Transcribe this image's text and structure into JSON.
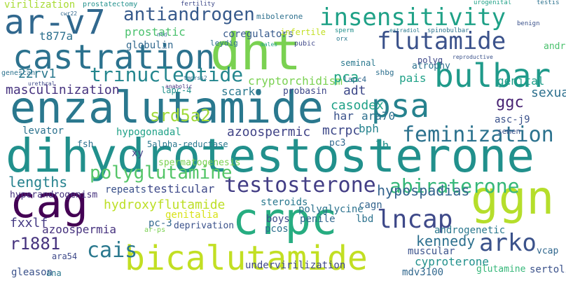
{
  "words": [
    {
      "text": "dihydrotestosterone",
      "color": "#21908c"
    },
    {
      "text": "enzalutamide",
      "color": "#2a788e"
    },
    {
      "text": "bicalutamide",
      "color": "#c2df23"
    },
    {
      "text": "dht",
      "color": "#7ad151"
    },
    {
      "text": "castration",
      "color": "#2c728e"
    },
    {
      "text": "crpc",
      "color": "#27ad81"
    },
    {
      "text": "cag",
      "color": "#440154"
    },
    {
      "text": "ggn",
      "color": "#b5de2b"
    },
    {
      "text": "ar-v7",
      "color": "#31688e"
    },
    {
      "text": "insensitivity",
      "color": "#1fa187"
    },
    {
      "text": "flutamide",
      "color": "#3b528b"
    },
    {
      "text": "bulbar",
      "color": "#1f9a8a"
    },
    {
      "text": "psa",
      "color": "#26828e"
    },
    {
      "text": "testosterone",
      "color": "#433e85"
    },
    {
      "text": "antiandrogen",
      "color": "#375a8c"
    },
    {
      "text": "arko",
      "color": "#3b528b"
    },
    {
      "text": "lncap",
      "color": "#3e4989"
    },
    {
      "text": "abiraterone",
      "color": "#35b779"
    },
    {
      "text": "feminization",
      "color": "#2c728e"
    },
    {
      "text": "trinucleotide",
      "color": "#24868e"
    },
    {
      "text": "polyglutamine",
      "color": "#54c568"
    },
    {
      "text": "hydroxyflutamide",
      "color": "#bddf26"
    },
    {
      "text": "cais",
      "color": "#2a788e"
    },
    {
      "text": "r1881",
      "color": "#46337e"
    },
    {
      "text": "hypospadias",
      "color": "#33638d"
    },
    {
      "text": "kennedy",
      "color": "#2d708e"
    },
    {
      "text": "lengths",
      "color": "#26828e"
    },
    {
      "text": "srd5a2",
      "color": "#a0da39"
    },
    {
      "text": "masculinization",
      "color": "#46327e"
    },
    {
      "text": "22rv1",
      "color": "#2a788e"
    },
    {
      "text": "t877a",
      "color": "#2d708e"
    },
    {
      "text": "virilization",
      "color": "#a8db34"
    },
    {
      "text": "prostatic",
      "color": "#4ac16d"
    },
    {
      "text": "globulin",
      "color": "#31688e"
    },
    {
      "text": "coregulators",
      "color": "#375a8c"
    },
    {
      "text": "cryptorchidism",
      "color": "#7ad151"
    },
    {
      "text": "pca",
      "color": "#22a884"
    },
    {
      "text": "adt",
      "color": "#3e4989"
    },
    {
      "text": "scarko",
      "color": "#2a788e"
    },
    {
      "text": "lapc-4",
      "color": "#21908c"
    },
    {
      "text": "probasin",
      "color": "#3f4889"
    },
    {
      "text": "pais",
      "color": "#1fa187"
    },
    {
      "text": "atrophy",
      "color": "#2c728e"
    },
    {
      "text": "sexual",
      "color": "#2d708e"
    },
    {
      "text": "genital",
      "color": "#1f9e89"
    },
    {
      "text": "ggc",
      "color": "#482374"
    },
    {
      "text": "casodex",
      "color": "#1fa187"
    },
    {
      "text": "har",
      "color": "#3b528b"
    },
    {
      "text": "ara70",
      "color": "#2d708e"
    },
    {
      "text": "asc-j9",
      "color": "#3b528b"
    },
    {
      "text": "bph",
      "color": "#25838e"
    },
    {
      "text": "mcrpc",
      "color": "#3e4989"
    },
    {
      "text": "azoospermic",
      "color": "#414487"
    },
    {
      "text": "hypogonadal",
      "color": "#1fa187"
    },
    {
      "text": "5alpha-reductase",
      "color": "#2a788e"
    },
    {
      "text": "levator",
      "color": "#2c728e"
    },
    {
      "text": "fsh",
      "color": "#2d708e"
    },
    {
      "text": "xy",
      "color": "#414487"
    },
    {
      "text": "pc3",
      "color": "#31688e"
    },
    {
      "text": "lh",
      "color": "#21908c"
    },
    {
      "text": "spermatogenesis",
      "color": "#7ad151"
    },
    {
      "text": "hyperandrogenism",
      "color": "#46327e"
    },
    {
      "text": "repeats",
      "color": "#3b528b"
    },
    {
      "text": "testicular",
      "color": "#3e4989"
    },
    {
      "text": "steroids",
      "color": "#2a788e"
    },
    {
      "text": "cagn",
      "color": "#33638d"
    },
    {
      "text": "lbd",
      "color": "#2c728e"
    },
    {
      "text": "fxxlf",
      "color": "#443983"
    },
    {
      "text": "azoospermia",
      "color": "#46327e"
    },
    {
      "text": "pc-3",
      "color": "#31688e"
    },
    {
      "text": "genitalia",
      "color": "#d8e219"
    },
    {
      "text": "deprivation",
      "color": "#3b528b"
    },
    {
      "text": "boys",
      "color": "#3e4989"
    },
    {
      "text": "penile",
      "color": "#31688e"
    },
    {
      "text": "polyglycine",
      "color": "#2c728e"
    },
    {
      "text": "pcos",
      "color": "#2d708e"
    },
    {
      "text": "androgenetic",
      "color": "#2a788e"
    },
    {
      "text": "muscular",
      "color": "#3b528b"
    },
    {
      "text": "cyproterone",
      "color": "#21908c"
    },
    {
      "text": "mdv3100",
      "color": "#31688e"
    },
    {
      "text": "undervirilization",
      "color": "#3f4889"
    },
    {
      "text": "gleason",
      "color": "#3b528b"
    },
    {
      "text": "ana",
      "color": "#2a788e"
    },
    {
      "text": "ara54",
      "color": "#3e4989"
    },
    {
      "text": "sertoli",
      "color": "#3b528b"
    },
    {
      "text": "vcap",
      "color": "#31688e"
    },
    {
      "text": "glutamine",
      "color": "#35b779"
    },
    {
      "text": "genescan",
      "color": "#2c728e"
    },
    {
      "text": "leydig",
      "color": "#2d708e"
    },
    {
      "text": "infertile",
      "color": "#c2df23"
    },
    {
      "text": "mibolerone",
      "color": "#2d708e"
    },
    {
      "text": "prostatectomy",
      "color": "#21908c"
    },
    {
      "text": "fertility",
      "color": "#3e4989"
    },
    {
      "text": "cwr22",
      "color": "#31688e"
    },
    {
      "text": "testis",
      "color": "#2c728e"
    },
    {
      "text": "urogenital",
      "color": "#1fa187"
    },
    {
      "text": "benign",
      "color": "#3b528b"
    },
    {
      "text": "androstenedione",
      "color": "#4ac16d"
    },
    {
      "text": "semen",
      "color": "#3b528b"
    },
    {
      "text": "polyq",
      "color": "#3e4989"
    },
    {
      "text": "seminal",
      "color": "#2a788e"
    },
    {
      "text": "lapc4",
      "color": "#31688e"
    },
    {
      "text": "shbg",
      "color": "#2d708e"
    },
    {
      "text": "pubic",
      "color": "#3f4889"
    },
    {
      "text": "sperm",
      "color": "#21908c"
    },
    {
      "text": "orx",
      "color": "#2a788e"
    },
    {
      "text": "ntd",
      "color": "#31688e"
    },
    {
      "text": "males",
      "color": "#1fa187"
    },
    {
      "text": "spinobulbar",
      "color": "#2c728e"
    },
    {
      "text": "estradiol",
      "color": "#2a788e"
    },
    {
      "text": "reproductive",
      "color": "#3b528b"
    },
    {
      "text": "urethral",
      "color": "#3e4989"
    },
    {
      "text": "anabolic",
      "color": "#46327e"
    },
    {
      "text": "tmprss2",
      "color": "#2d708e"
    },
    {
      "text": "ar-ps",
      "color": "#7ad151"
    }
  ]
}
